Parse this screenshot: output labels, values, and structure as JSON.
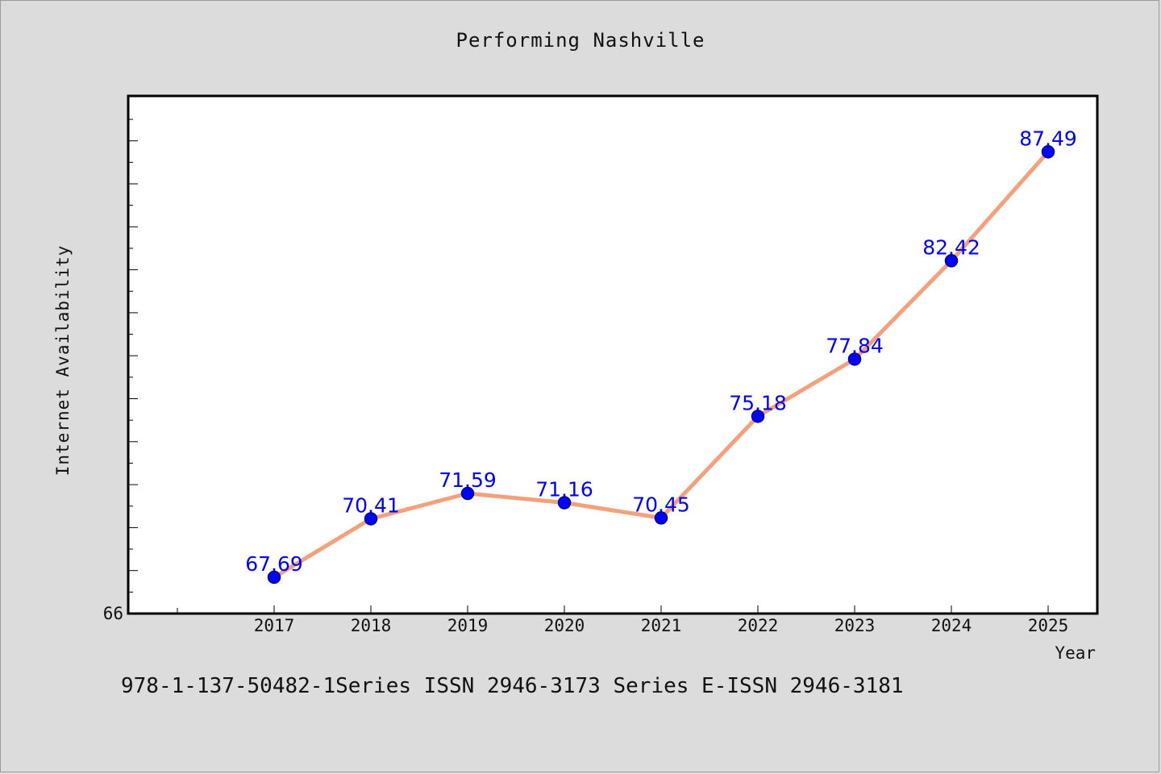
{
  "chart_data": {
    "type": "line",
    "title": "Performing Nashville",
    "xlabel": "Year",
    "ylabel": "Internet Availability",
    "categories": [
      "2017",
      "2018",
      "2019",
      "2020",
      "2021",
      "2022",
      "2023",
      "2024",
      "2025"
    ],
    "series": [
      {
        "values": [
          67.69,
          70.41,
          71.59,
          71.16,
          70.45,
          75.18,
          77.84,
          82.42,
          87.49
        ],
        "line_color": "#f4a07a",
        "marker_color": "#0000ff"
      }
    ],
    "ylim": [
      66,
      90
    ],
    "y_tick_labels": [
      "66"
    ],
    "data_labels": true,
    "grid": false,
    "legend": "none"
  },
  "footer_text": "978-1-137-50482-1Series ISSN 2946-3173 Series E-ISSN 2946-3181"
}
